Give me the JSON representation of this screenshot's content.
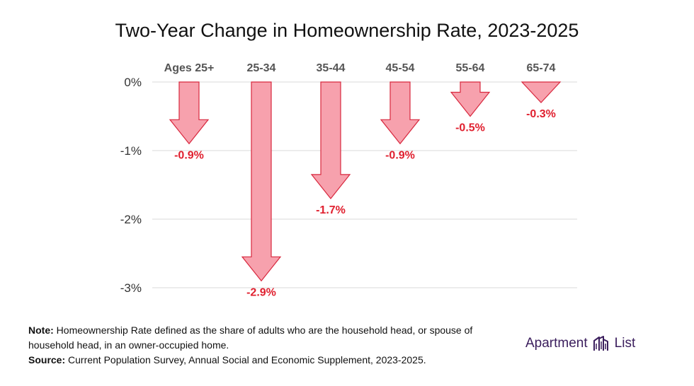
{
  "title": "Two-Year Change in Homeownership Rate, 2023-2025",
  "chart_data": {
    "type": "bar",
    "title": "Two-Year Change in Homeownership Rate, 2023-2025",
    "categories": [
      "Ages 25+",
      "25-34",
      "35-44",
      "45-54",
      "55-64",
      "65-74"
    ],
    "values": [
      -0.9,
      -2.9,
      -1.7,
      -0.9,
      -0.5,
      -0.3
    ],
    "value_labels": [
      "-0.9%",
      "-2.9%",
      "-1.7%",
      "-0.9%",
      "-0.5%",
      "-0.3%"
    ],
    "ylim": [
      -3,
      0
    ],
    "yticks": [
      0,
      -1,
      -2,
      -3
    ],
    "ytick_labels": [
      "0%",
      "-1%",
      "-2%",
      "-3%"
    ],
    "grid": true,
    "category_axis_position": "top",
    "colors": {
      "fill": "#f7a1ad",
      "stroke": "#d8283e",
      "label": "#e0202f",
      "grid": "#d9d9d9"
    }
  },
  "footer": {
    "note_label": "Note:",
    "note_text": "Homeownership Rate defined as the share of adults who are the household head, or spouse of household head, in an owner-occupied home.",
    "source_label": "Source:",
    "source_text": "Current Population Survey, Annual Social and Economic Supplement, 2023-2025."
  },
  "logo": {
    "word1": "Apartment",
    "word2": "List",
    "color": "#3a1d5c"
  }
}
